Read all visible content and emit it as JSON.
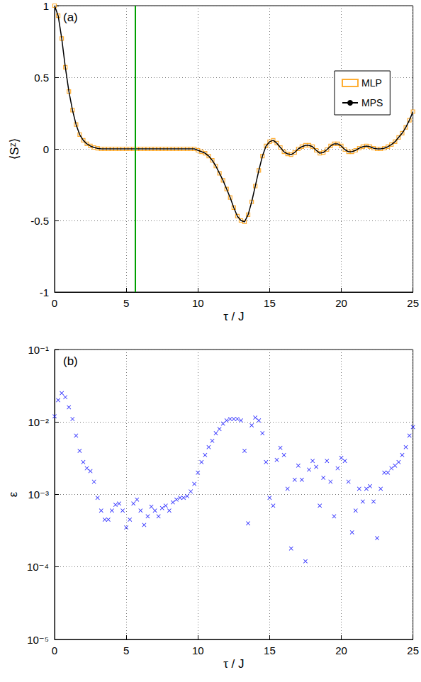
{
  "chart_data": [
    {
      "type": "line",
      "annotation": "(a)",
      "x_label": "τ / J",
      "y_label": "⟨Sᶻ⟩",
      "xlim": [
        0,
        25
      ],
      "xticks": [
        0,
        5,
        10,
        15,
        20,
        25
      ],
      "ylim": [
        -1,
        1
      ],
      "yticks": [
        -1,
        -0.5,
        0,
        0.5,
        1
      ],
      "grid": true,
      "legend": "upper right",
      "vline": {
        "x": 5.6,
        "color": "#00a000"
      },
      "x": [
        0,
        0.25,
        0.5,
        0.75,
        1,
        1.25,
        1.5,
        1.75,
        2,
        2.25,
        2.5,
        2.75,
        3,
        3.25,
        3.5,
        3.75,
        4,
        4.25,
        4.5,
        4.75,
        5,
        5.25,
        5.5,
        5.75,
        6,
        6.25,
        6.5,
        6.75,
        7,
        7.25,
        7.5,
        7.75,
        8,
        8.25,
        8.5,
        8.75,
        9,
        9.25,
        9.5,
        9.75,
        10,
        10.25,
        10.5,
        10.75,
        11,
        11.25,
        11.5,
        11.75,
        12,
        12.25,
        12.5,
        12.75,
        13,
        13.25,
        13.5,
        13.75,
        14,
        14.25,
        14.5,
        14.75,
        15,
        15.25,
        15.5,
        15.75,
        16,
        16.25,
        16.5,
        16.75,
        17,
        17.25,
        17.5,
        17.75,
        18,
        18.25,
        18.5,
        18.75,
        19,
        19.25,
        19.5,
        19.75,
        20,
        20.25,
        20.5,
        20.75,
        21,
        21.25,
        21.5,
        21.75,
        22,
        22.25,
        22.5,
        22.75,
        23,
        23.25,
        23.5,
        23.75,
        24,
        24.25,
        24.5,
        24.75,
        25
      ],
      "series": [
        {
          "name": "MLP",
          "type": "scatter",
          "marker": "square",
          "color": "#ff9a00",
          "values": [
            1.0,
            0.93,
            0.77,
            0.57,
            0.4,
            0.27,
            0.17,
            0.1,
            0.06,
            0.035,
            0.02,
            0.01,
            0.004,
            0,
            0,
            0,
            0,
            0,
            0,
            0,
            0,
            0,
            0,
            0,
            0,
            0,
            0,
            0,
            0,
            0,
            0,
            0,
            0,
            0,
            0,
            0,
            0,
            0,
            0,
            0,
            -0.01,
            -0.02,
            -0.03,
            -0.05,
            -0.08,
            -0.12,
            -0.17,
            -0.22,
            -0.28,
            -0.34,
            -0.41,
            -0.47,
            -0.5,
            -0.51,
            -0.46,
            -0.37,
            -0.26,
            -0.15,
            -0.05,
            0.02,
            0.05,
            0.06,
            0.04,
            0.01,
            -0.02,
            -0.035,
            -0.04,
            -0.025,
            0,
            0.015,
            0.025,
            0.025,
            0.015,
            -0.01,
            -0.03,
            -0.025,
            -0.005,
            0.02,
            0.035,
            0.035,
            0.02,
            -0.005,
            -0.02,
            -0.02,
            -0.01,
            0.005,
            0.015,
            0.02,
            0.015,
            0.005,
            0,
            0,
            0.005,
            0.015,
            0.03,
            0.05,
            0.08,
            0.11,
            0.15,
            0.2,
            0.26
          ]
        },
        {
          "name": "MPS",
          "type": "line",
          "line_style": "solid",
          "color": "#000000",
          "values": [
            1.0,
            0.93,
            0.77,
            0.57,
            0.4,
            0.27,
            0.17,
            0.1,
            0.06,
            0.035,
            0.02,
            0.01,
            0.004,
            0,
            0,
            0,
            0,
            0,
            0,
            0,
            0,
            0,
            0,
            0,
            0,
            0,
            0,
            0,
            0,
            0,
            0,
            0,
            0,
            0,
            0,
            0,
            0,
            0,
            0,
            0,
            -0.01,
            -0.02,
            -0.03,
            -0.05,
            -0.08,
            -0.12,
            -0.17,
            -0.22,
            -0.28,
            -0.34,
            -0.41,
            -0.47,
            -0.5,
            -0.51,
            -0.46,
            -0.37,
            -0.26,
            -0.15,
            -0.05,
            0.02,
            0.05,
            0.06,
            0.04,
            0.01,
            -0.02,
            -0.035,
            -0.04,
            -0.025,
            0,
            0.015,
            0.025,
            0.025,
            0.015,
            -0.01,
            -0.03,
            -0.025,
            -0.005,
            0.02,
            0.035,
            0.035,
            0.02,
            -0.005,
            -0.02,
            -0.02,
            -0.01,
            0.005,
            0.015,
            0.02,
            0.015,
            0.005,
            0,
            0,
            0.005,
            0.015,
            0.03,
            0.05,
            0.08,
            0.11,
            0.15,
            0.2,
            0.26
          ]
        }
      ]
    },
    {
      "type": "scatter",
      "annotation": "(b)",
      "x_label": "τ / J",
      "y_label": "ε",
      "log": "y",
      "xlim": [
        0,
        25
      ],
      "xticks": [
        0,
        5,
        10,
        15,
        20,
        25
      ],
      "ylim": [
        1e-05,
        0.1
      ],
      "yticks": [
        {
          "value": 1e-05,
          "label": "10⁻⁵"
        },
        {
          "value": 0.0001,
          "label": "10⁻⁴"
        },
        {
          "value": 0.001,
          "label": "10⁻³"
        },
        {
          "value": 0.01,
          "label": "10⁻²"
        },
        {
          "value": 0.1,
          "label": "10⁻¹"
        }
      ],
      "grid": true,
      "x": [
        0,
        0.25,
        0.5,
        0.75,
        1,
        1.25,
        1.5,
        1.75,
        2,
        2.25,
        2.5,
        2.75,
        3,
        3.25,
        3.5,
        3.75,
        4,
        4.25,
        4.5,
        4.75,
        5,
        5.25,
        5.5,
        5.75,
        6,
        6.25,
        6.5,
        6.75,
        7,
        7.25,
        7.5,
        7.75,
        8,
        8.25,
        8.5,
        8.75,
        9,
        9.25,
        9.5,
        9.75,
        10,
        10.25,
        10.5,
        10.75,
        11,
        11.25,
        11.5,
        11.75,
        12,
        12.25,
        12.5,
        12.75,
        13,
        13.25,
        13.5,
        13.75,
        14,
        14.25,
        14.5,
        14.75,
        15,
        15.25,
        15.5,
        15.75,
        16,
        16.25,
        16.5,
        16.75,
        17,
        17.25,
        17.5,
        17.75,
        18,
        18.25,
        18.5,
        18.75,
        19,
        19.25,
        19.5,
        19.75,
        20,
        20.25,
        20.5,
        20.75,
        21,
        21.25,
        21.5,
        21.75,
        22,
        22.25,
        22.5,
        22.75,
        23,
        23.25,
        23.5,
        23.75,
        24,
        24.25,
        24.5,
        24.75,
        25
      ],
      "series": [
        {
          "marker": "x",
          "color": "#0000ff",
          "values": [
            0.012,
            0.02,
            0.025,
            0.022,
            0.016,
            0.011,
            0.0065,
            0.004,
            0.0028,
            0.0023,
            0.0021,
            0.0015,
            0.0009,
            0.0006,
            0.00045,
            0.00045,
            0.0006,
            0.00072,
            0.00075,
            0.0006,
            0.00035,
            0.00045,
            0.00075,
            0.00085,
            0.0006,
            0.00038,
            0.0005,
            0.00068,
            0.0006,
            0.0005,
            0.00065,
            0.0007,
            0.0006,
            0.00078,
            0.00085,
            0.0009,
            0.0009,
            0.00095,
            0.0011,
            0.0014,
            0.002,
            0.0028,
            0.0035,
            0.0045,
            0.0055,
            0.007,
            0.008,
            0.0095,
            0.0105,
            0.011,
            0.011,
            0.011,
            0.0105,
            0.004,
            0.0004,
            0.009,
            0.0115,
            0.0105,
            0.007,
            0.0028,
            0.0009,
            0.0007,
            0.003,
            0.0044,
            0.0035,
            0.0012,
            0.00018,
            0.0016,
            0.0025,
            0.0016,
            0.00012,
            0.0022,
            0.0029,
            0.0024,
            0.0007,
            0.0017,
            0.0029,
            0.0015,
            0.0005,
            0.0023,
            0.0032,
            0.0029,
            0.0015,
            0.0003,
            0.0006,
            0.0012,
            0.0008,
            0.0012,
            0.0013,
            0.0008,
            0.00025,
            0.0012,
            0.002,
            0.002,
            0.0023,
            0.0025,
            0.0028,
            0.0035,
            0.0045,
            0.0065,
            0.0085
          ]
        }
      ]
    }
  ]
}
